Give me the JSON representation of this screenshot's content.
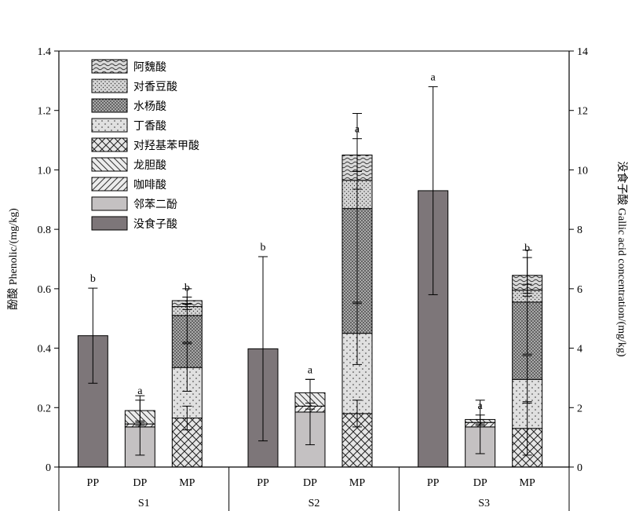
{
  "chart_data": {
    "type": "bar",
    "stacked": true,
    "ylabel_left": "酚酸 Phenolic/(mg/kg)",
    "ylabel_right": "没食子酸 Gallic acid concentration/(mg/kg)",
    "ylim_left": [
      0,
      1.4
    ],
    "ylim_right": [
      0,
      14
    ],
    "yticks_left": [
      "0",
      "0.2",
      "0.4",
      "0.6",
      "0.8",
      "1.0",
      "1.2",
      "1.4"
    ],
    "yticks_right": [
      "0",
      "2",
      "4",
      "6",
      "8",
      "10",
      "12",
      "14"
    ],
    "groups": [
      "S1",
      "S2",
      "S3"
    ],
    "categories": [
      "PP",
      "DP",
      "MP"
    ],
    "legend_position": "top-left",
    "legend": [
      "阿魏酸",
      "对香豆酸",
      "水杨酸",
      "丁香酸",
      "对羟基苯甲酸",
      "龙胆酸",
      "咖啡酸",
      "邻苯二酚",
      "没食子酸"
    ],
    "series": [
      {
        "name": "没食子酸",
        "axis": "right",
        "pattern": "solid-dark",
        "color": "#7d7679",
        "values": {
          "S1": {
            "PP": 4.42
          },
          "S2": {
            "PP": 3.98
          },
          "S3": {
            "PP": 9.3
          }
        },
        "errors": {
          "S1": {
            "PP": 1.6
          },
          "S2": {
            "PP": 3.1
          },
          "S3": {
            "PP": 3.5
          }
        }
      },
      {
        "name": "邻苯二酚",
        "axis": "left",
        "pattern": "solid-light",
        "color": "#c4c1c2",
        "values": {
          "S1": {
            "DP": 0.135,
            "MP": 0
          },
          "S2": {
            "DP": 0.185,
            "MP": 0
          },
          "S3": {
            "DP": 0.135,
            "MP": 0
          }
        }
      },
      {
        "name": "咖啡酸",
        "axis": "left",
        "pattern": "diagonal-fwd",
        "values": {
          "S1": {
            "DP": 0.01,
            "MP": 0
          },
          "S2": {
            "DP": 0.02,
            "MP": 0
          },
          "S3": {
            "DP": 0.015,
            "MP": 0
          }
        }
      },
      {
        "name": "龙胆酸",
        "axis": "left",
        "pattern": "diagonal-back",
        "values": {
          "S1": {
            "DP": 0.045,
            "MP": 0
          },
          "S2": {
            "DP": 0.045,
            "MP": 0
          },
          "S3": {
            "DP": 0.01,
            "MP": 0
          }
        }
      },
      {
        "name": "对羟基苯甲酸",
        "axis": "left",
        "pattern": "crosshatch",
        "values": {
          "S1": {
            "DP": 0,
            "MP": 0.165
          },
          "S2": {
            "DP": 0,
            "MP": 0.18
          },
          "S3": {
            "DP": 0,
            "MP": 0.13
          }
        }
      },
      {
        "name": "丁香酸",
        "axis": "left",
        "pattern": "sparse-dots",
        "values": {
          "S1": {
            "DP": 0,
            "MP": 0.17
          },
          "S2": {
            "DP": 0,
            "MP": 0.27
          },
          "S3": {
            "DP": 0,
            "MP": 0.165
          }
        }
      },
      {
        "name": "水杨酸",
        "axis": "left",
        "pattern": "dense-dots",
        "values": {
          "S1": {
            "DP": 0,
            "MP": 0.175
          },
          "S2": {
            "DP": 0,
            "MP": 0.42
          },
          "S3": {
            "DP": 0,
            "MP": 0.26
          }
        }
      },
      {
        "name": "对香豆酸",
        "axis": "left",
        "pattern": "fine-dots",
        "values": {
          "S1": {
            "DP": 0,
            "MP": 0.03
          },
          "S2": {
            "DP": 0,
            "MP": 0.095
          },
          "S3": {
            "DP": 0,
            "MP": 0.04
          }
        }
      },
      {
        "name": "阿魏酸",
        "axis": "left",
        "pattern": "waves",
        "values": {
          "S1": {
            "DP": 0,
            "MP": 0.02
          },
          "S2": {
            "DP": 0,
            "MP": 0.085
          },
          "S3": {
            "DP": 0,
            "MP": 0.05
          }
        }
      }
    ],
    "totals_error": {
      "S1": {
        "DP": 0.035,
        "MP": 0.012
      },
      "S2": {
        "DP": 0.045,
        "MP": 0.055
      },
      "S3": {
        "DP": 0.015,
        "MP": 0.06
      }
    },
    "inner_errors": {
      "S1": {
        "DP": [
          0.14,
          0.145
        ],
        "MP": [
          0.165,
          0.335,
          0.51,
          0.54
        ]
      },
      "S2": {
        "DP": [
          0.185,
          0.205
        ],
        "MP": [
          0.18,
          0.45,
          0.87,
          0.965
        ]
      },
      "S3": {
        "DP": [
          0.135,
          0.15
        ],
        "MP": [
          0.13,
          0.295,
          0.555,
          0.595
        ]
      }
    },
    "inner_error_sizes": {
      "S1": {
        "DP": [
          0.1,
          0.005
        ],
        "MP": [
          0.04,
          0.08,
          0.09,
          0.01
        ]
      },
      "S2": {
        "DP": [
          0.11,
          0.01
        ],
        "MP": [
          0.045,
          0.105,
          0.32,
          0.03
        ]
      },
      "S3": {
        "DP": [
          0.09,
          0.01
        ],
        "MP": [
          0.09,
          0.08,
          0.175,
          0.02
        ]
      }
    },
    "letters": {
      "S1": {
        "PP": "b",
        "DP": "a",
        "MP": "b"
      },
      "S2": {
        "PP": "b",
        "DP": "a",
        "MP": "a"
      },
      "S3": {
        "PP": "a",
        "DP": "a",
        "MP": "b"
      }
    }
  }
}
